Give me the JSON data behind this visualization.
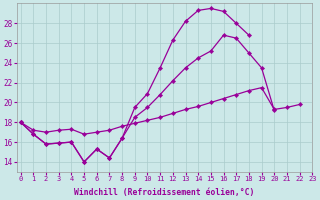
{
  "background_color": "#cce8e8",
  "grid_color": "#aacccc",
  "line_color": "#990099",
  "xlabel": "Windchill (Refroidissement éolien,°C)",
  "xlabel_color": "#990099",
  "tick_color": "#990099",
  "xlim": [
    0,
    23
  ],
  "ylim": [
    13,
    30
  ],
  "yticks": [
    14,
    16,
    18,
    20,
    22,
    24,
    26,
    28
  ],
  "xticks": [
    0,
    1,
    2,
    3,
    4,
    5,
    6,
    7,
    8,
    9,
    10,
    11,
    12,
    13,
    14,
    15,
    16,
    17,
    18,
    19,
    20,
    21,
    22,
    23
  ],
  "series_main": [
    18.0,
    16.8,
    15.8,
    15.9,
    16.0,
    14.0,
    15.3,
    14.4,
    16.4,
    19.5,
    20.9,
    23.5,
    26.3,
    28.2,
    29.3,
    29.5,
    29.2,
    28.0,
    26.8,
    null,
    null,
    null,
    null,
    null
  ],
  "series_mid": [
    18.0,
    16.8,
    15.8,
    15.9,
    16.0,
    14.0,
    15.3,
    14.4,
    16.4,
    18.5,
    19.5,
    20.8,
    22.2,
    23.5,
    24.5,
    25.2,
    26.8,
    26.5,
    25.0,
    23.5,
    19.2,
    null,
    null,
    null
  ],
  "series_low": [
    18.0,
    17.2,
    17.0,
    17.2,
    17.3,
    16.8,
    17.0,
    17.2,
    17.6,
    17.9,
    18.2,
    18.5,
    18.9,
    19.3,
    19.6,
    20.0,
    20.4,
    20.8,
    21.2,
    21.5,
    19.3,
    19.5,
    19.8,
    null
  ]
}
